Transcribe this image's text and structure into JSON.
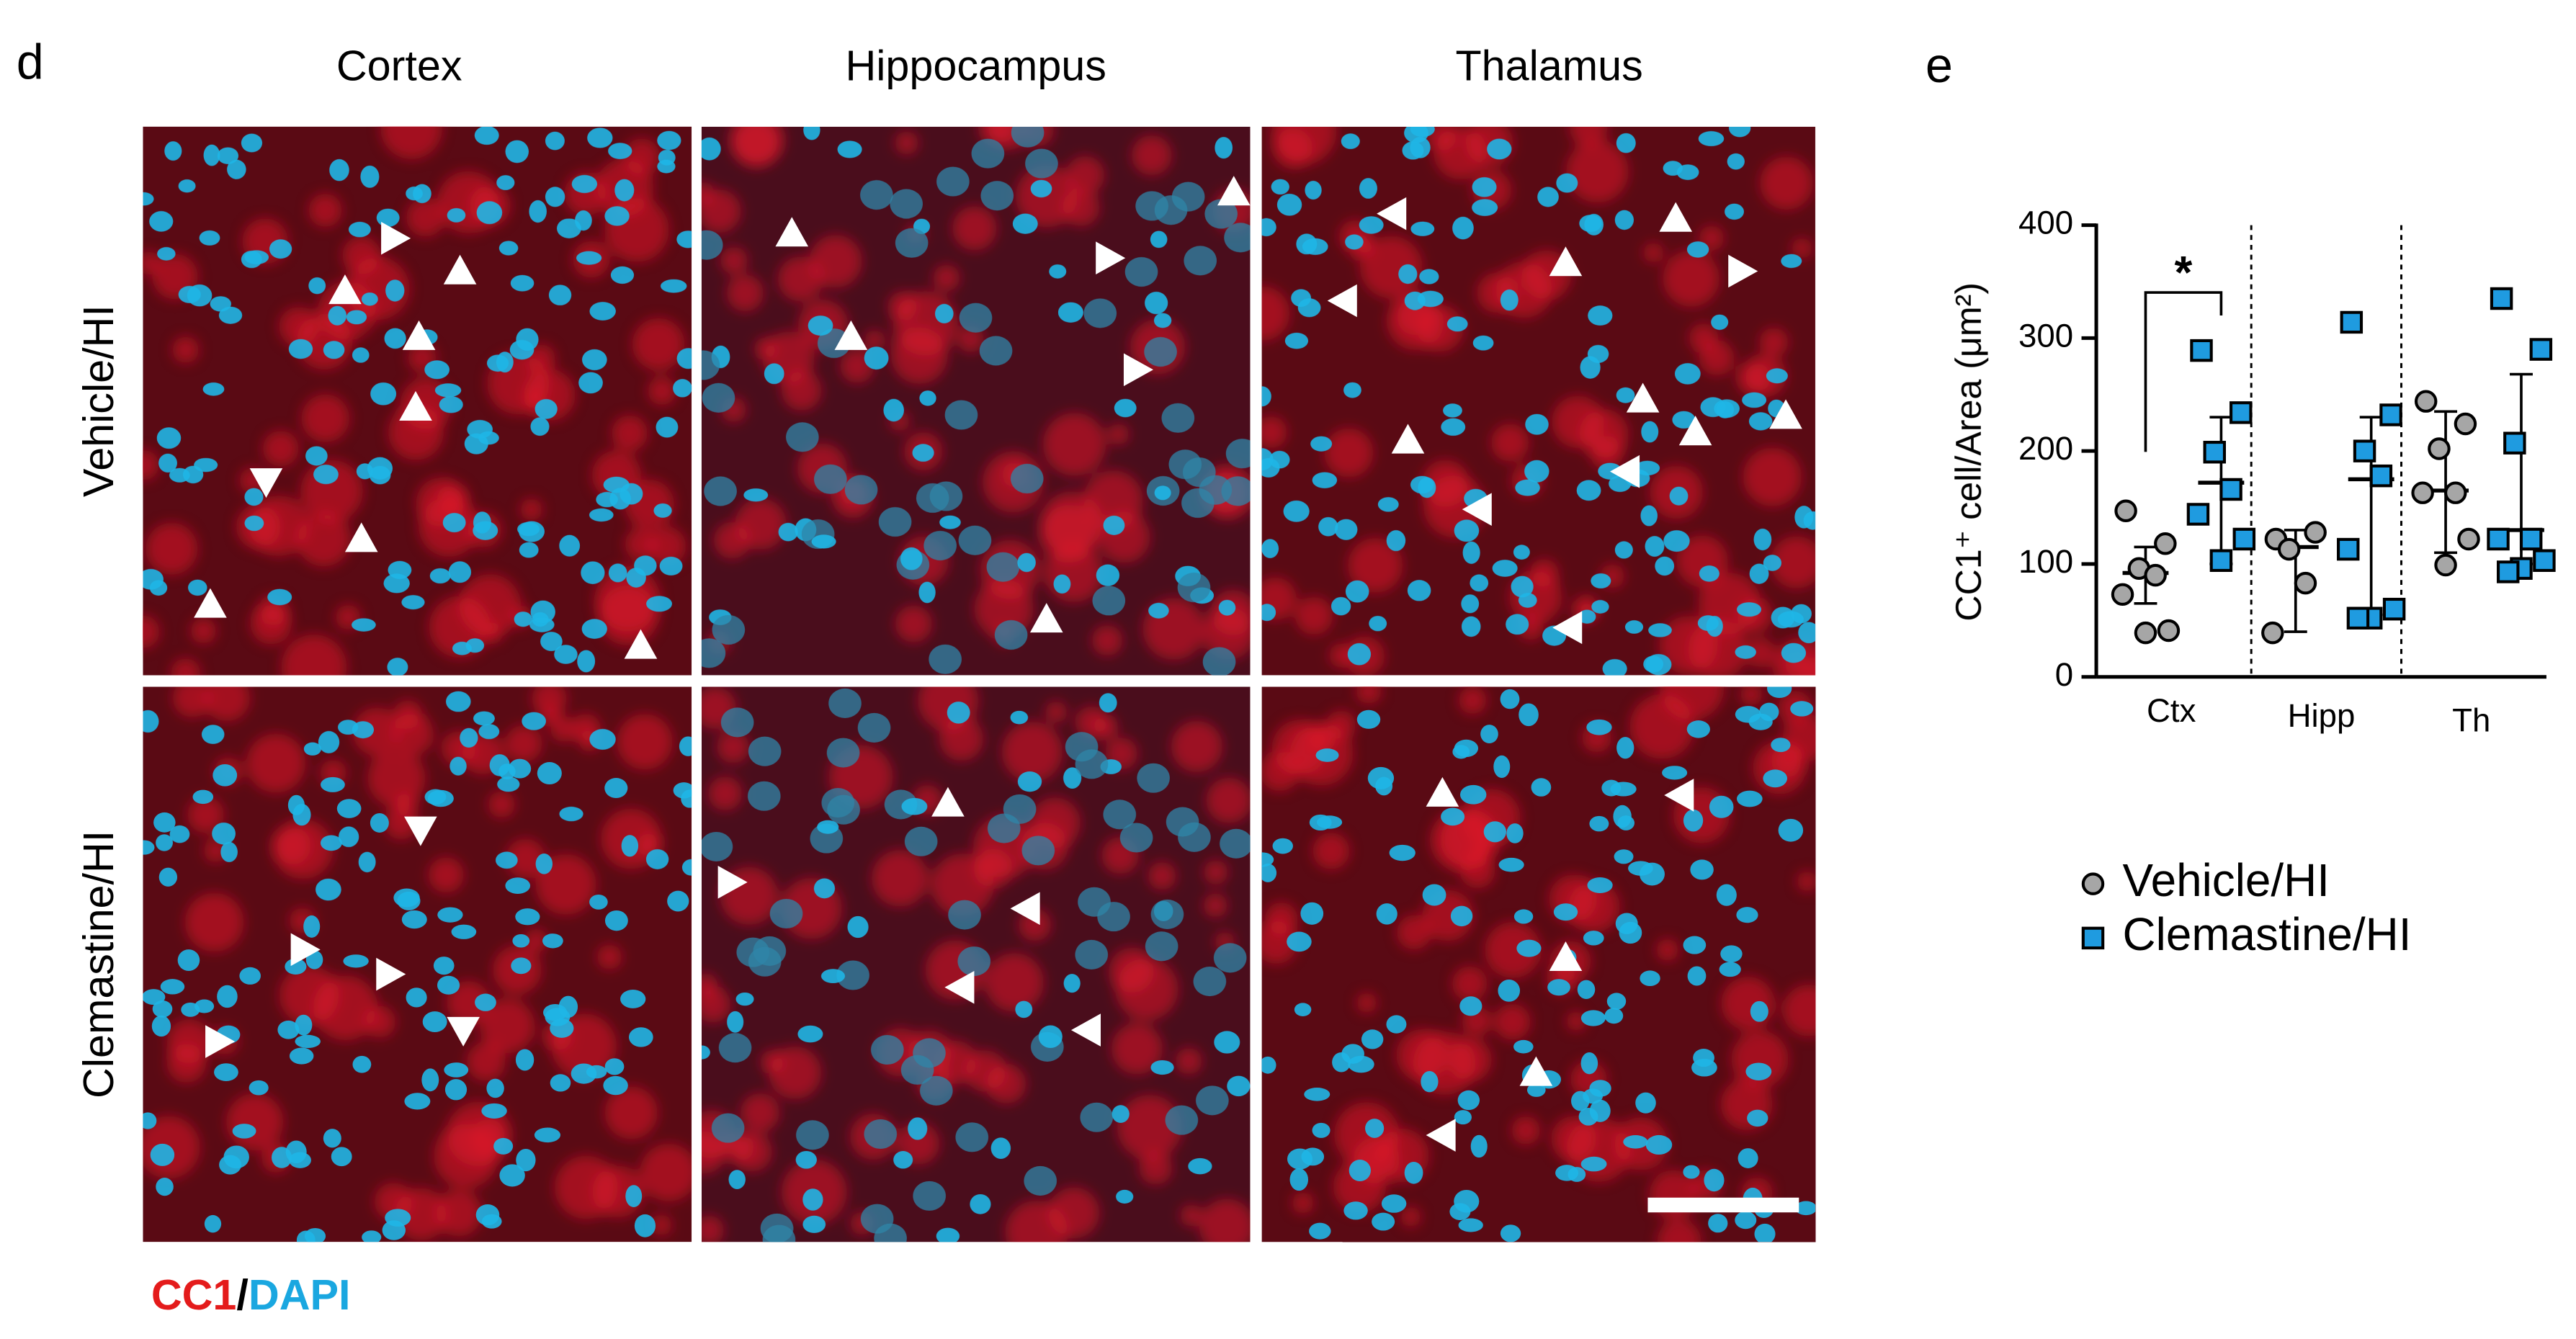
{
  "panel_d": {
    "label": "d",
    "columns": [
      "Cortex",
      "Hippocampus",
      "Thalamus"
    ],
    "rows": [
      "Vehicle/HI",
      "Clemastine/HI"
    ],
    "stain": {
      "cc1": "CC1",
      "sep": "/",
      "dapi": "DAPI"
    }
  },
  "panel_e": {
    "label": "e"
  },
  "chart_data": {
    "type": "dot",
    "y_label": "CC1⁺ cell/Area (μm²)",
    "categories": [
      "Ctx",
      "Hipp",
      "Th"
    ],
    "ylim": [
      0,
      400
    ],
    "yticks": [
      0,
      100,
      200,
      300,
      400
    ],
    "annotation": "*",
    "series": [
      {
        "name": "Vehicle/HI",
        "color": "#a6a6a6",
        "marker": "circle",
        "values": [
          [
            147,
            118,
            96,
            90,
            73,
            41,
            39
          ],
          [
            122,
            128,
            113,
            83,
            39
          ],
          [
            244,
            224,
            202,
            163,
            163,
            122,
            99
          ]
        ],
        "center": [
          92,
          115,
          165
        ],
        "low": [
          65,
          40,
          110
        ],
        "high": [
          115,
          130,
          235
        ]
      },
      {
        "name": "Clemastine/HI",
        "color": "#1f9be0",
        "marker": "square",
        "values": [
          [
            289,
            234,
            199,
            166,
            144,
            122,
            103
          ],
          [
            314,
            232,
            200,
            178,
            113,
            60,
            52,
            52
          ],
          [
            335,
            290,
            207,
            122,
            122,
            103,
            96,
            93
          ]
        ],
        "center": [
          172,
          175,
          130
        ],
        "low": [
          100,
          55,
          100
        ],
        "high": [
          230,
          230,
          268
        ]
      }
    ]
  }
}
